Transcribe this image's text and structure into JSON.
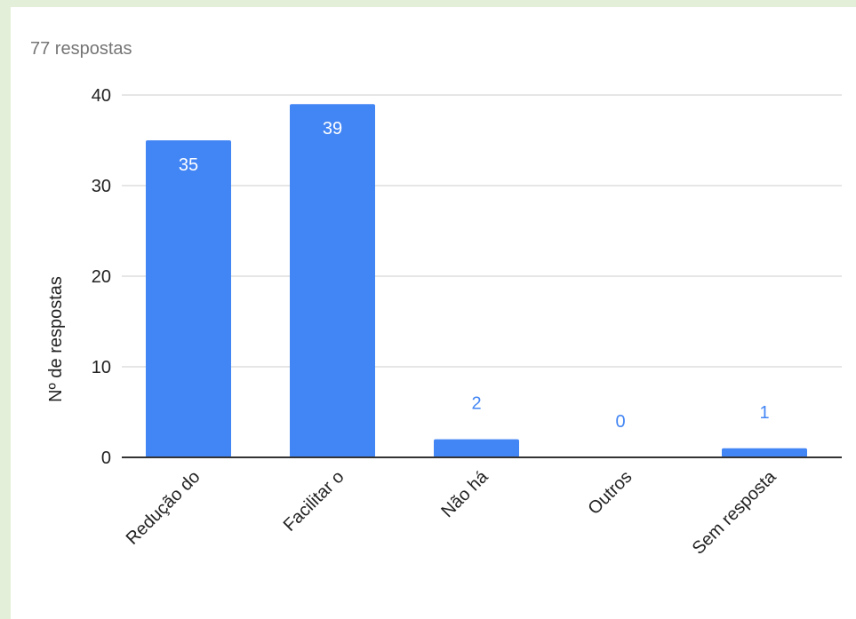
{
  "response_count_label": "77 respostas",
  "chart_data": {
    "type": "bar",
    "categories": [
      "Redução do",
      "Facilitar o",
      "Não há",
      "Outros",
      "Sem resposta"
    ],
    "values": [
      35,
      39,
      2,
      0,
      1
    ],
    "data_labels": [
      "35",
      "39",
      "2",
      "0",
      "1"
    ],
    "title": "",
    "xlabel": "",
    "ylabel": "Nº de respostas",
    "ylim": [
      0,
      40
    ],
    "yticks": [
      0,
      10,
      20,
      30,
      40
    ],
    "grid": true,
    "bar_color": "#4285f4",
    "label_inside_color": "#ffffff",
    "label_outside_color": "#4285f4",
    "gridline_color": "#cccccc",
    "background_color": "#e3efd8"
  }
}
